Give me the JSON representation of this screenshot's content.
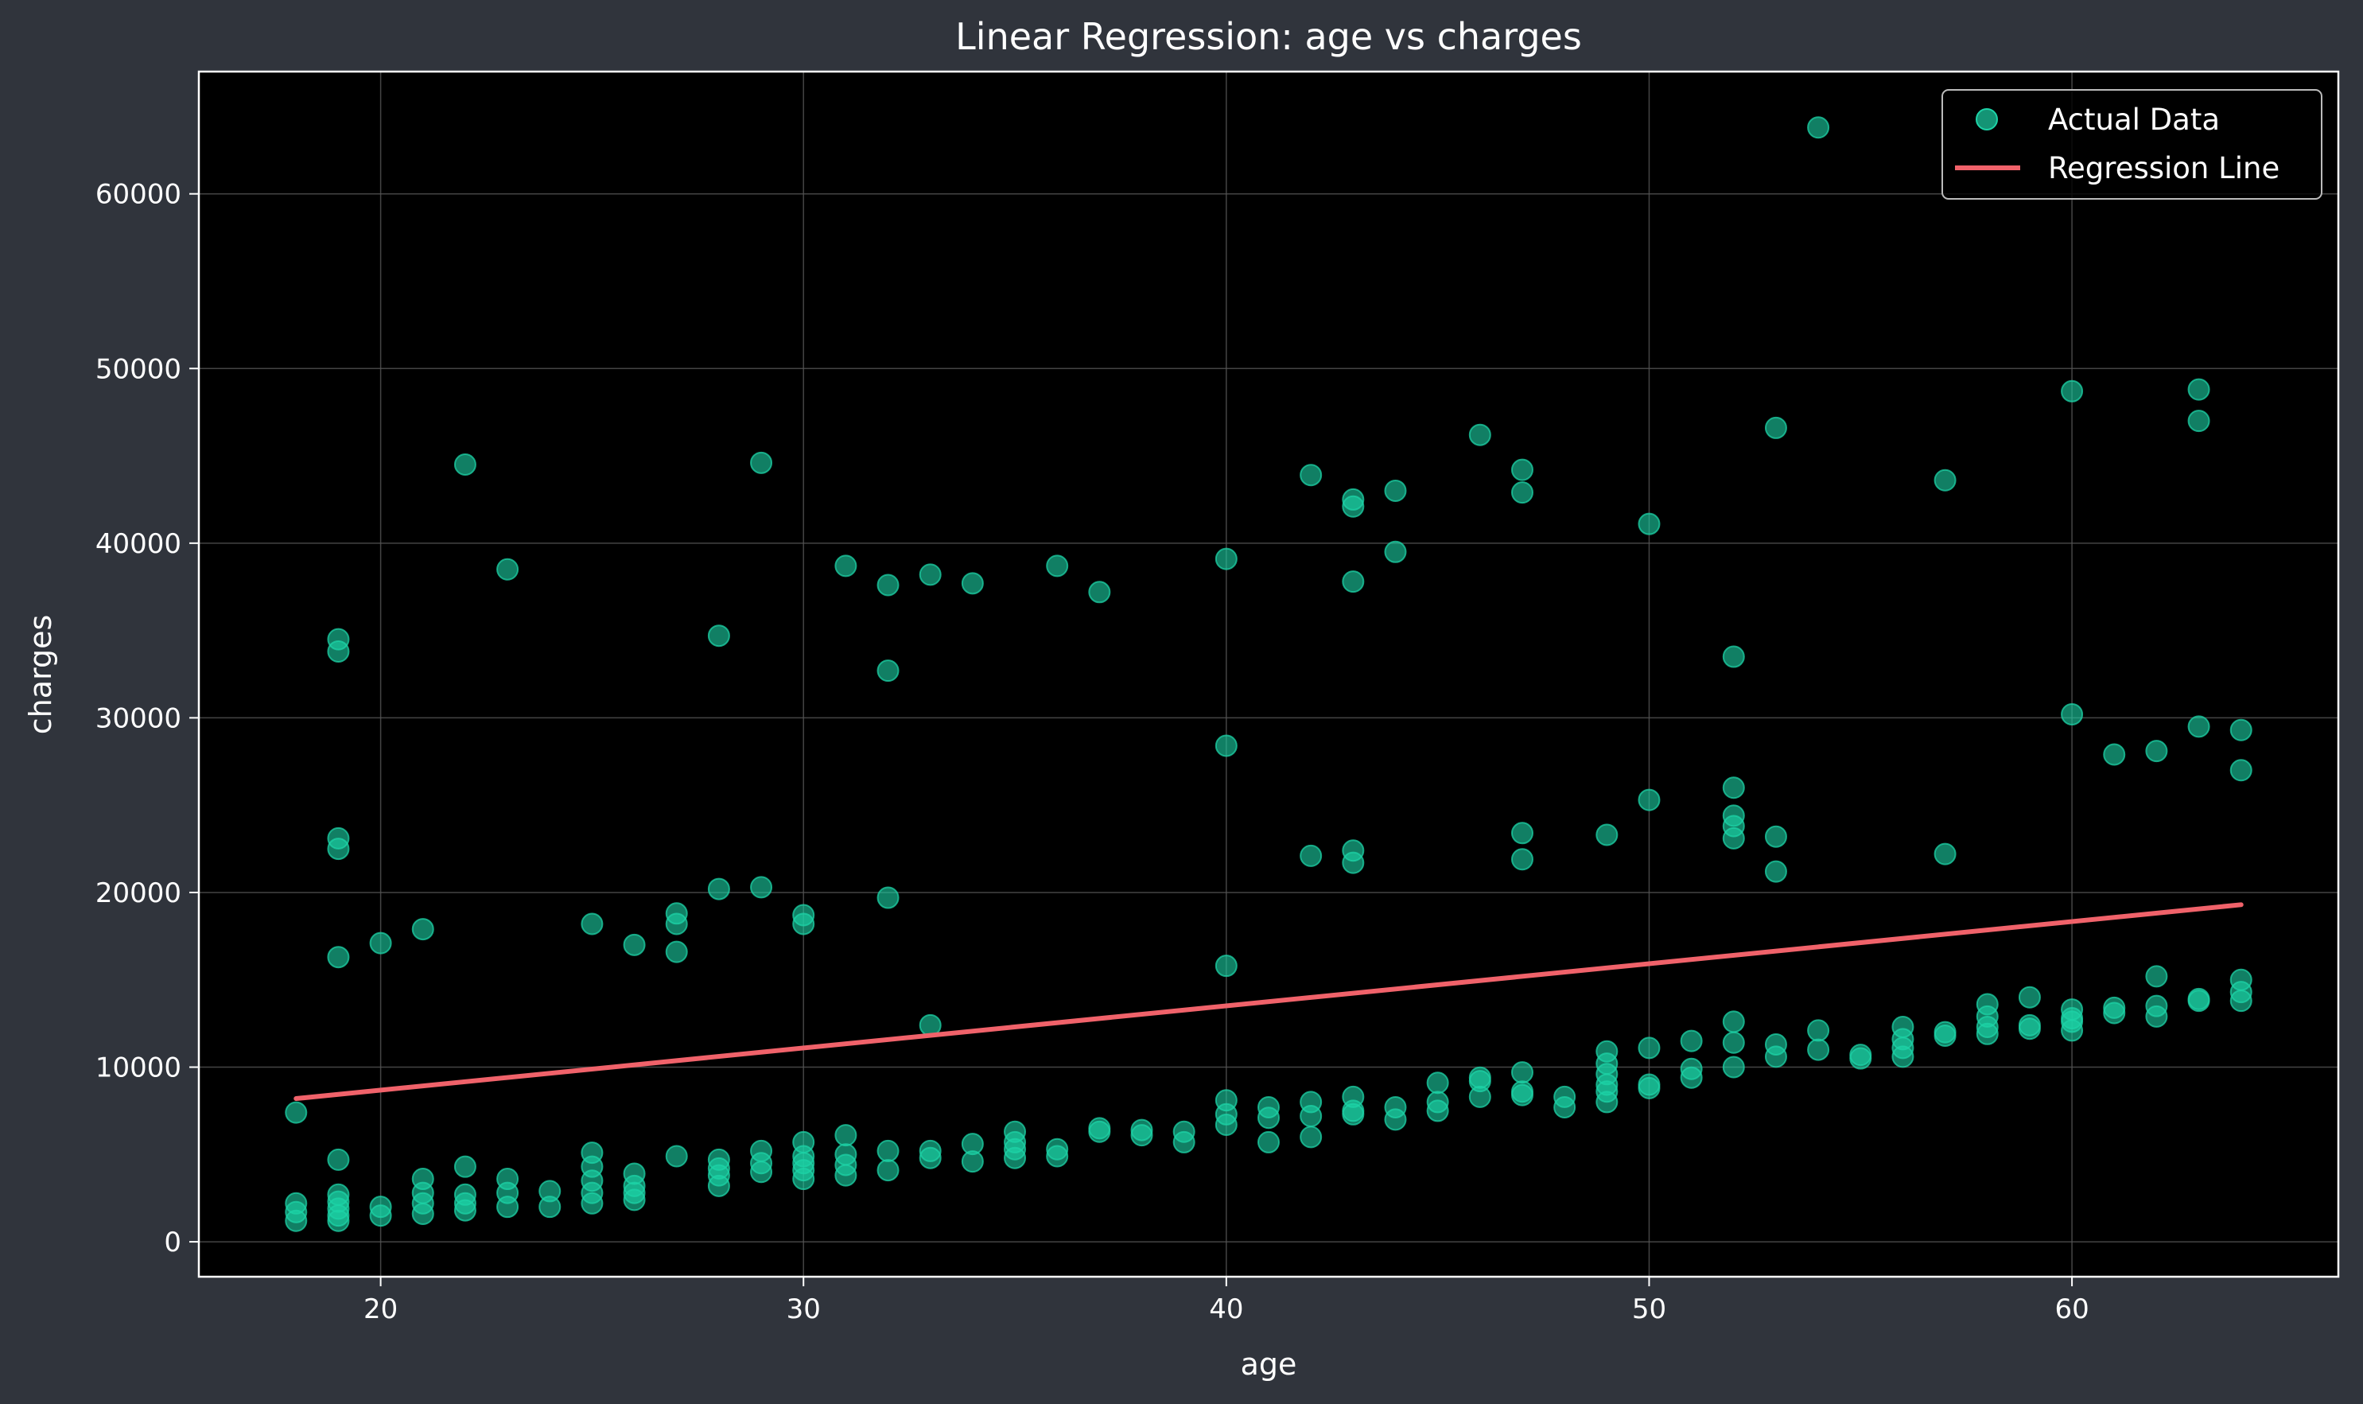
{
  "chart_data": {
    "type": "scatter",
    "title": "Linear Regression: age vs charges",
    "xlabel": "age",
    "ylabel": "charges",
    "xlim": [
      15.7,
      66.3
    ],
    "ylim": [
      -2000,
      67000
    ],
    "xticks": [
      20,
      30,
      40,
      50,
      60
    ],
    "yticks": [
      0,
      10000,
      20000,
      30000,
      40000,
      50000,
      60000
    ],
    "grid": true,
    "legend_position": "top-right",
    "colors": {
      "background": "#30343c",
      "plot": "#000000",
      "points": "#1dd3a7",
      "line": "#f0626a",
      "grid": "#555555"
    },
    "series": [
      {
        "name": "Actual Data",
        "kind": "scatter",
        "points": [
          [
            18,
            7400
          ],
          [
            18,
            2200
          ],
          [
            18,
            1700
          ],
          [
            18,
            1200
          ],
          [
            19,
            34500
          ],
          [
            19,
            33800
          ],
          [
            19,
            23100
          ],
          [
            19,
            22500
          ],
          [
            19,
            16300
          ],
          [
            19,
            4700
          ],
          [
            19,
            2700
          ],
          [
            19,
            2300
          ],
          [
            19,
            1900
          ],
          [
            19,
            1500
          ],
          [
            19,
            1200
          ],
          [
            20,
            17100
          ],
          [
            20,
            2000
          ],
          [
            20,
            1500
          ],
          [
            21,
            17900
          ],
          [
            21,
            3600
          ],
          [
            21,
            2800
          ],
          [
            21,
            2200
          ],
          [
            21,
            1600
          ],
          [
            22,
            44500
          ],
          [
            22,
            4300
          ],
          [
            22,
            2700
          ],
          [
            22,
            2200
          ],
          [
            22,
            1800
          ],
          [
            23,
            38500
          ],
          [
            23,
            3600
          ],
          [
            23,
            2800
          ],
          [
            23,
            2000
          ],
          [
            24,
            2900
          ],
          [
            24,
            2000
          ],
          [
            25,
            18200
          ],
          [
            25,
            5100
          ],
          [
            25,
            4300
          ],
          [
            25,
            3500
          ],
          [
            25,
            2800
          ],
          [
            25,
            2200
          ],
          [
            26,
            17000
          ],
          [
            26,
            3900
          ],
          [
            26,
            3200
          ],
          [
            26,
            2800
          ],
          [
            26,
            2400
          ],
          [
            27,
            18800
          ],
          [
            27,
            18200
          ],
          [
            27,
            16600
          ],
          [
            27,
            4900
          ],
          [
            28,
            34700
          ],
          [
            28,
            20200
          ],
          [
            28,
            4700
          ],
          [
            28,
            4200
          ],
          [
            28,
            3800
          ],
          [
            28,
            3200
          ],
          [
            29,
            44600
          ],
          [
            29,
            20300
          ],
          [
            29,
            5200
          ],
          [
            29,
            4500
          ],
          [
            29,
            4000
          ],
          [
            30,
            18700
          ],
          [
            30,
            18200
          ],
          [
            30,
            5700
          ],
          [
            30,
            4900
          ],
          [
            30,
            4500
          ],
          [
            30,
            4100
          ],
          [
            30,
            3600
          ],
          [
            31,
            38700
          ],
          [
            31,
            6100
          ],
          [
            31,
            5000
          ],
          [
            31,
            4400
          ],
          [
            31,
            3800
          ],
          [
            32,
            37600
          ],
          [
            32,
            32700
          ],
          [
            32,
            19700
          ],
          [
            32,
            5200
          ],
          [
            32,
            4100
          ],
          [
            33,
            38200
          ],
          [
            33,
            12400
          ],
          [
            33,
            5200
          ],
          [
            33,
            4800
          ],
          [
            34,
            37700
          ],
          [
            34,
            5600
          ],
          [
            34,
            4600
          ],
          [
            35,
            6300
          ],
          [
            35,
            5700
          ],
          [
            35,
            5300
          ],
          [
            35,
            4800
          ],
          [
            36,
            38700
          ],
          [
            36,
            5300
          ],
          [
            36,
            4900
          ],
          [
            37,
            37200
          ],
          [
            37,
            6500
          ],
          [
            37,
            6300
          ],
          [
            38,
            6400
          ],
          [
            38,
            6100
          ],
          [
            39,
            6300
          ],
          [
            39,
            5700
          ],
          [
            40,
            39100
          ],
          [
            40,
            28400
          ],
          [
            40,
            15800
          ],
          [
            40,
            8100
          ],
          [
            40,
            7300
          ],
          [
            40,
            6700
          ],
          [
            41,
            7700
          ],
          [
            41,
            7100
          ],
          [
            41,
            5700
          ],
          [
            42,
            43900
          ],
          [
            42,
            22100
          ],
          [
            42,
            8000
          ],
          [
            42,
            7200
          ],
          [
            42,
            6000
          ],
          [
            43,
            42500
          ],
          [
            43,
            42100
          ],
          [
            43,
            37800
          ],
          [
            43,
            22400
          ],
          [
            43,
            21700
          ],
          [
            43,
            8300
          ],
          [
            43,
            7500
          ],
          [
            43,
            7300
          ],
          [
            44,
            43000
          ],
          [
            44,
            39500
          ],
          [
            44,
            7700
          ],
          [
            44,
            7000
          ],
          [
            45,
            9100
          ],
          [
            45,
            8000
          ],
          [
            45,
            7500
          ],
          [
            46,
            46200
          ],
          [
            46,
            9400
          ],
          [
            46,
            9200
          ],
          [
            46,
            8300
          ],
          [
            47,
            44200
          ],
          [
            47,
            42900
          ],
          [
            47,
            23400
          ],
          [
            47,
            21900
          ],
          [
            47,
            9700
          ],
          [
            47,
            8600
          ],
          [
            47,
            8400
          ],
          [
            48,
            8300
          ],
          [
            48,
            7700
          ],
          [
            49,
            23300
          ],
          [
            49,
            10900
          ],
          [
            49,
            10200
          ],
          [
            49,
            9600
          ],
          [
            49,
            9000
          ],
          [
            49,
            8600
          ],
          [
            49,
            8000
          ],
          [
            50,
            41100
          ],
          [
            50,
            25300
          ],
          [
            50,
            11100
          ],
          [
            50,
            9000
          ],
          [
            50,
            8800
          ],
          [
            51,
            11500
          ],
          [
            51,
            9900
          ],
          [
            51,
            9400
          ],
          [
            52,
            33500
          ],
          [
            52,
            26000
          ],
          [
            52,
            24400
          ],
          [
            52,
            23800
          ],
          [
            52,
            23100
          ],
          [
            52,
            12600
          ],
          [
            52,
            11400
          ],
          [
            52,
            10000
          ],
          [
            53,
            46600
          ],
          [
            53,
            23200
          ],
          [
            53,
            21200
          ],
          [
            53,
            11300
          ],
          [
            53,
            10600
          ],
          [
            54,
            63800
          ],
          [
            54,
            12100
          ],
          [
            54,
            11000
          ],
          [
            55,
            10700
          ],
          [
            55,
            10500
          ],
          [
            56,
            12300
          ],
          [
            56,
            11600
          ],
          [
            56,
            11100
          ],
          [
            56,
            10600
          ],
          [
            57,
            43600
          ],
          [
            57,
            22200
          ],
          [
            57,
            12000
          ],
          [
            57,
            11800
          ],
          [
            58,
            13600
          ],
          [
            58,
            12900
          ],
          [
            58,
            12300
          ],
          [
            58,
            11900
          ],
          [
            59,
            14000
          ],
          [
            59,
            12400
          ],
          [
            59,
            12200
          ],
          [
            60,
            48700
          ],
          [
            60,
            30200
          ],
          [
            60,
            13300
          ],
          [
            60,
            12800
          ],
          [
            60,
            12600
          ],
          [
            60,
            12100
          ],
          [
            61,
            27900
          ],
          [
            61,
            13400
          ],
          [
            61,
            13100
          ],
          [
            62,
            28100
          ],
          [
            62,
            15200
          ],
          [
            62,
            13500
          ],
          [
            62,
            12900
          ],
          [
            63,
            48800
          ],
          [
            63,
            47000
          ],
          [
            63,
            29500
          ],
          [
            63,
            13900
          ],
          [
            63,
            13800
          ],
          [
            64,
            29300
          ],
          [
            64,
            27000
          ],
          [
            64,
            15000
          ],
          [
            64,
            14300
          ],
          [
            64,
            13800
          ]
        ]
      },
      {
        "name": "Regression Line",
        "kind": "line",
        "points": [
          [
            18,
            8200
          ],
          [
            64,
            19300
          ]
        ]
      }
    ]
  }
}
